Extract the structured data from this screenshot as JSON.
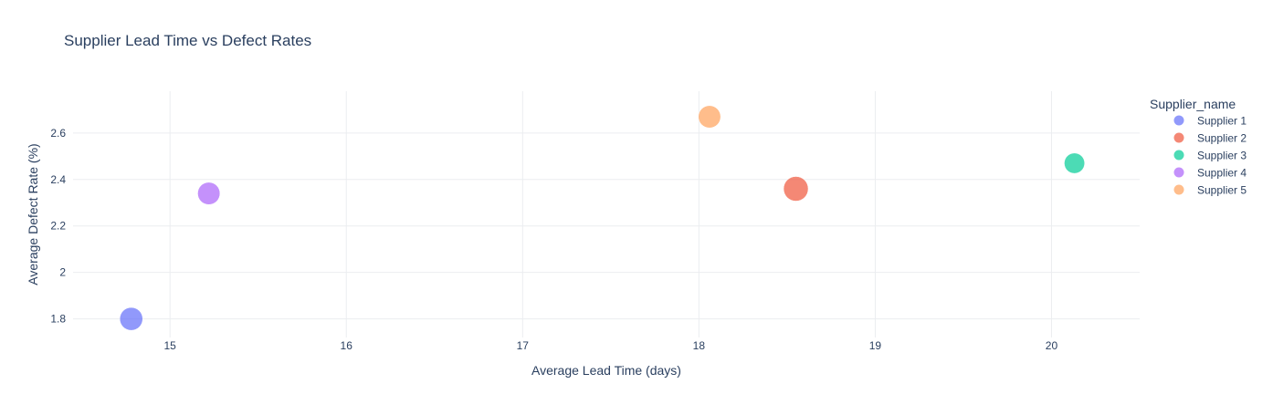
{
  "chart_data": {
    "type": "scatter",
    "title": "Supplier Lead Time vs Defect Rates",
    "xlabel": "Average Lead Time (days)",
    "ylabel": "Average Defect Rate (%)",
    "xlim": [
      14.45,
      20.5
    ],
    "ylim": [
      1.72,
      2.78
    ],
    "xticks": [
      15,
      16,
      17,
      18,
      19,
      20
    ],
    "yticks": [
      1.8,
      2,
      2.2,
      2.4,
      2.6
    ],
    "grid": true,
    "legend_title": "Supplier_name",
    "legend_position": "right",
    "series": [
      {
        "name": "Supplier 1",
        "color": "#636efa",
        "x": 14.78,
        "y": 1.8,
        "count": 19
      },
      {
        "name": "Supplier 2",
        "color": "#ef553b",
        "x": 18.55,
        "y": 2.36,
        "count": 22
      },
      {
        "name": "Supplier 3",
        "color": "#00cc96",
        "x": 20.13,
        "y": 2.47,
        "count": 15
      },
      {
        "name": "Supplier 4",
        "color": "#ab63fa",
        "x": 15.22,
        "y": 2.34,
        "count": 18
      },
      {
        "name": "Supplier 5",
        "color": "#ffa15a",
        "x": 18.06,
        "y": 2.67,
        "count": 18
      }
    ]
  }
}
